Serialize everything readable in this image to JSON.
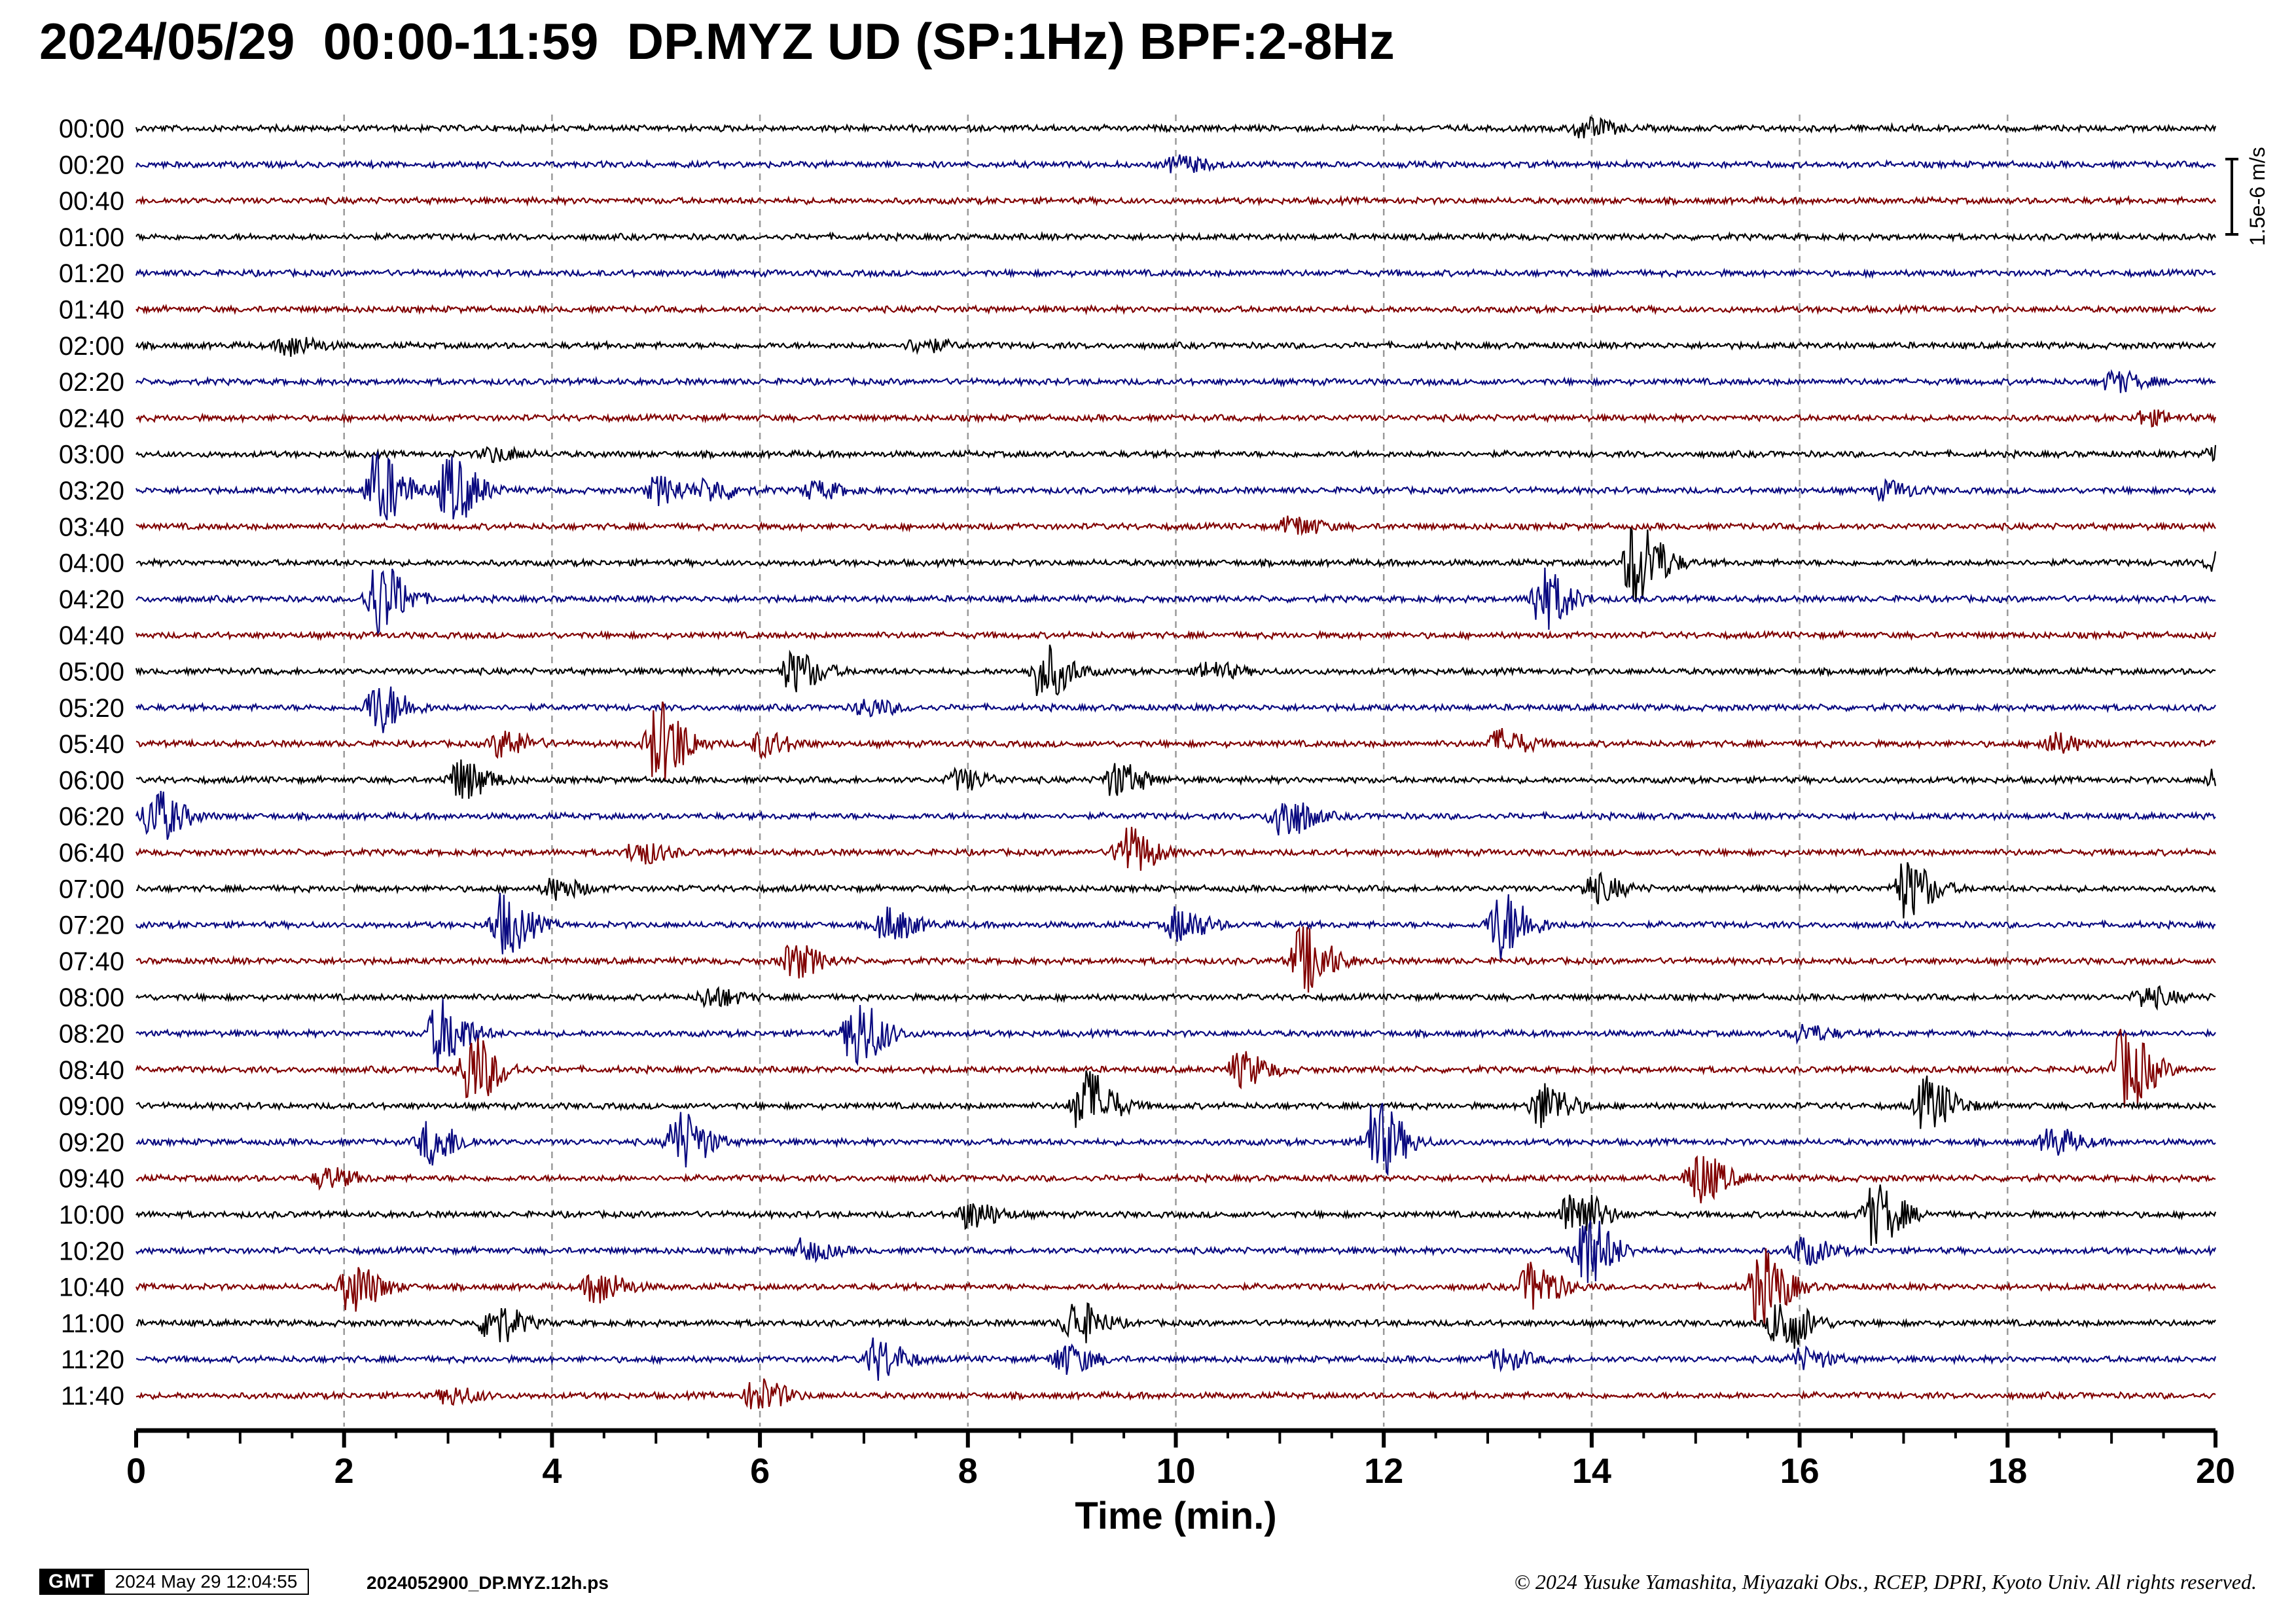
{
  "header": {
    "title": "2024/05/29  00:00-11:59  DP.MYZ UD (SP:1Hz) BPF:2-8Hz"
  },
  "footer": {
    "logo_text": "GMT",
    "timestamp": "2024 May 29 12:04:55",
    "filename": "2024052900_DP.MYZ.12h.ps",
    "copyright": "© 2024 Yusuke Yamashita, Miyazaki Obs., RCEP, DPRI, Kyoto Univ. All rights reserved."
  },
  "chart_data": {
    "type": "seismogram-helicorder",
    "xlabel": "Time (min.)",
    "xlim": [
      0,
      20
    ],
    "xticks": [
      "0",
      "2",
      "4",
      "6",
      "8",
      "10",
      "12",
      "14",
      "16",
      "18",
      "20"
    ],
    "scale_label": "1.5e-6 m/s",
    "grid": true,
    "colors": [
      "#000000",
      "#0a0a80",
      "#800000"
    ],
    "rows": [
      {
        "label": "00:00",
        "events": [
          {
            "t": 13.9,
            "a": 0.6
          }
        ]
      },
      {
        "label": "00:20",
        "events": [
          {
            "t": 10.0,
            "a": 0.5
          }
        ]
      },
      {
        "label": "00:40",
        "events": []
      },
      {
        "label": "01:00",
        "events": []
      },
      {
        "label": "01:20",
        "events": []
      },
      {
        "label": "01:40",
        "events": []
      },
      {
        "label": "02:00",
        "events": [
          {
            "t": 1.45,
            "a": 0.6
          },
          {
            "t": 7.5,
            "a": 0.4
          }
        ]
      },
      {
        "label": "02:20",
        "events": [
          {
            "t": 19.0,
            "a": 0.6
          }
        ]
      },
      {
        "label": "02:40",
        "events": [
          {
            "t": 19.3,
            "a": 0.4
          }
        ]
      },
      {
        "label": "03:00",
        "events": [
          {
            "t": 3.4,
            "a": 0.4
          },
          {
            "t": 20.0,
            "a": 0.7
          }
        ]
      },
      {
        "label": "03:20",
        "events": [
          {
            "t": 2.3,
            "a": 2.2
          },
          {
            "t": 3.0,
            "a": 2.0
          },
          {
            "t": 5.0,
            "a": 0.8
          },
          {
            "t": 5.5,
            "a": 0.6
          },
          {
            "t": 6.5,
            "a": 0.5
          },
          {
            "t": 16.8,
            "a": 0.5
          }
        ]
      },
      {
        "label": "03:40",
        "events": [
          {
            "t": 11.1,
            "a": 0.6
          }
        ]
      },
      {
        "label": "04:00",
        "events": [
          {
            "t": 14.4,
            "a": 2.6
          },
          {
            "t": 20.0,
            "a": 0.6
          }
        ]
      },
      {
        "label": "04:20",
        "events": [
          {
            "t": 2.3,
            "a": 2.2
          },
          {
            "t": 13.5,
            "a": 1.8
          }
        ]
      },
      {
        "label": "04:40",
        "events": []
      },
      {
        "label": "05:00",
        "events": [
          {
            "t": 6.3,
            "a": 1.2
          },
          {
            "t": 8.7,
            "a": 1.6
          },
          {
            "t": 10.3,
            "a": 0.5
          }
        ]
      },
      {
        "label": "05:20",
        "events": [
          {
            "t": 2.3,
            "a": 1.5
          },
          {
            "t": 7.0,
            "a": 0.5
          }
        ]
      },
      {
        "label": "05:40",
        "events": [
          {
            "t": 3.5,
            "a": 0.8
          },
          {
            "t": 5.0,
            "a": 2.5
          },
          {
            "t": 6.0,
            "a": 0.7
          },
          {
            "t": 13.1,
            "a": 0.8
          },
          {
            "t": 18.4,
            "a": 0.6
          }
        ]
      },
      {
        "label": "06:00",
        "events": [
          {
            "t": 3.1,
            "a": 1.2
          },
          {
            "t": 7.9,
            "a": 0.6
          },
          {
            "t": 9.4,
            "a": 1.0
          },
          {
            "t": 20.0,
            "a": 0.6
          }
        ]
      },
      {
        "label": "06:20",
        "events": [
          {
            "t": 0.15,
            "a": 1.6
          },
          {
            "t": 11.0,
            "a": 1.4
          }
        ]
      },
      {
        "label": "06:40",
        "events": [
          {
            "t": 4.8,
            "a": 0.7
          },
          {
            "t": 9.5,
            "a": 1.5
          }
        ]
      },
      {
        "label": "07:00",
        "events": [
          {
            "t": 4.0,
            "a": 0.6
          },
          {
            "t": 14.0,
            "a": 0.8
          },
          {
            "t": 17.0,
            "a": 1.7
          }
        ]
      },
      {
        "label": "07:20",
        "events": [
          {
            "t": 3.5,
            "a": 1.8
          },
          {
            "t": 7.2,
            "a": 1.0
          },
          {
            "t": 10.0,
            "a": 1.0
          },
          {
            "t": 13.1,
            "a": 2.0
          }
        ]
      },
      {
        "label": "07:40",
        "events": [
          {
            "t": 6.3,
            "a": 1.0
          },
          {
            "t": 11.2,
            "a": 2.0
          }
        ]
      },
      {
        "label": "08:00",
        "events": [
          {
            "t": 5.5,
            "a": 0.6
          },
          {
            "t": 19.3,
            "a": 0.6
          }
        ]
      },
      {
        "label": "08:20",
        "events": [
          {
            "t": 2.9,
            "a": 2.0
          },
          {
            "t": 6.9,
            "a": 2.1
          },
          {
            "t": 16.0,
            "a": 0.5
          }
        ]
      },
      {
        "label": "08:40",
        "events": [
          {
            "t": 3.2,
            "a": 2.1
          },
          {
            "t": 10.6,
            "a": 1.0
          },
          {
            "t": 19.1,
            "a": 2.4
          }
        ]
      },
      {
        "label": "09:00",
        "events": [
          {
            "t": 9.1,
            "a": 2.2
          },
          {
            "t": 13.5,
            "a": 1.4
          },
          {
            "t": 17.2,
            "a": 1.6
          }
        ]
      },
      {
        "label": "09:20",
        "events": [
          {
            "t": 2.8,
            "a": 1.3
          },
          {
            "t": 5.2,
            "a": 1.8
          },
          {
            "t": 11.9,
            "a": 2.3
          },
          {
            "t": 18.4,
            "a": 0.8
          }
        ]
      },
      {
        "label": "09:40",
        "events": [
          {
            "t": 1.8,
            "a": 0.6
          },
          {
            "t": 15.0,
            "a": 1.5
          }
        ]
      },
      {
        "label": "10:00",
        "events": [
          {
            "t": 8.0,
            "a": 0.8
          },
          {
            "t": 13.8,
            "a": 1.7
          },
          {
            "t": 16.7,
            "a": 1.8
          }
        ]
      },
      {
        "label": "10:20",
        "events": [
          {
            "t": 6.4,
            "a": 0.6
          },
          {
            "t": 13.9,
            "a": 2.3
          },
          {
            "t": 16.0,
            "a": 0.8
          }
        ]
      },
      {
        "label": "10:40",
        "events": [
          {
            "t": 2.05,
            "a": 1.5
          },
          {
            "t": 4.4,
            "a": 1.0
          },
          {
            "t": 13.4,
            "a": 1.4
          },
          {
            "t": 15.6,
            "a": 2.2
          }
        ]
      },
      {
        "label": "11:00",
        "events": [
          {
            "t": 3.4,
            "a": 1.3
          },
          {
            "t": 9.0,
            "a": 1.3
          },
          {
            "t": 15.8,
            "a": 1.8
          }
        ]
      },
      {
        "label": "11:20",
        "events": [
          {
            "t": 7.1,
            "a": 1.2
          },
          {
            "t": 8.9,
            "a": 0.9
          },
          {
            "t": 13.1,
            "a": 0.6
          },
          {
            "t": 16.0,
            "a": 0.6
          }
        ]
      },
      {
        "label": "11:40",
        "events": [
          {
            "t": 3.0,
            "a": 0.5
          },
          {
            "t": 5.95,
            "a": 1.0
          }
        ]
      }
    ]
  }
}
